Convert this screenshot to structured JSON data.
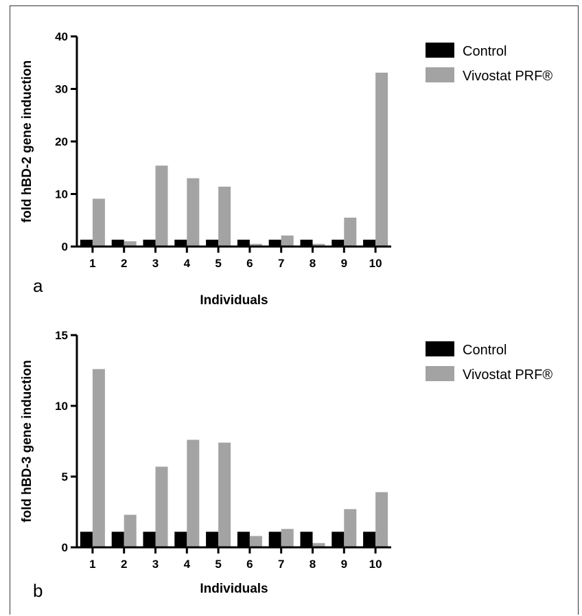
{
  "chart_data": [
    {
      "type": "bar",
      "panel_label": "a",
      "categories": [
        "1",
        "2",
        "3",
        "4",
        "5",
        "6",
        "7",
        "8",
        "9",
        "10"
      ],
      "series": [
        {
          "name": "Control",
          "color": "#000000",
          "values": [
            1.3,
            1.3,
            1.3,
            1.3,
            1.3,
            1.3,
            1.3,
            1.3,
            1.3,
            1.3
          ]
        },
        {
          "name": "Vivostat PRF®",
          "color": "#a3a3a3",
          "values": [
            9.1,
            1.0,
            15.4,
            13.0,
            11.4,
            0.5,
            2.1,
            0.5,
            5.5,
            33.1
          ]
        }
      ],
      "xlabel": "Individuals",
      "ylabel": "fold hBD-2 gene induction",
      "ylim": [
        0,
        40
      ],
      "yticks": [
        0,
        10,
        20,
        30,
        40
      ],
      "legend_position": "right"
    },
    {
      "type": "bar",
      "panel_label": "b",
      "categories": [
        "1",
        "2",
        "3",
        "4",
        "5",
        "6",
        "7",
        "8",
        "9",
        "10"
      ],
      "series": [
        {
          "name": "Control",
          "color": "#000000",
          "values": [
            1.1,
            1.1,
            1.1,
            1.1,
            1.1,
            1.1,
            1.1,
            1.1,
            1.1,
            1.1
          ]
        },
        {
          "name": "Vivostat PRF®",
          "color": "#a3a3a3",
          "values": [
            12.6,
            2.3,
            5.7,
            7.6,
            7.4,
            0.8,
            1.3,
            0.3,
            2.7,
            3.9
          ]
        }
      ],
      "xlabel": "Individuals",
      "ylabel": "fold hBD-3 gene induction",
      "ylim": [
        0,
        15
      ],
      "yticks": [
        0,
        5,
        10,
        15
      ],
      "legend_position": "right"
    }
  ]
}
